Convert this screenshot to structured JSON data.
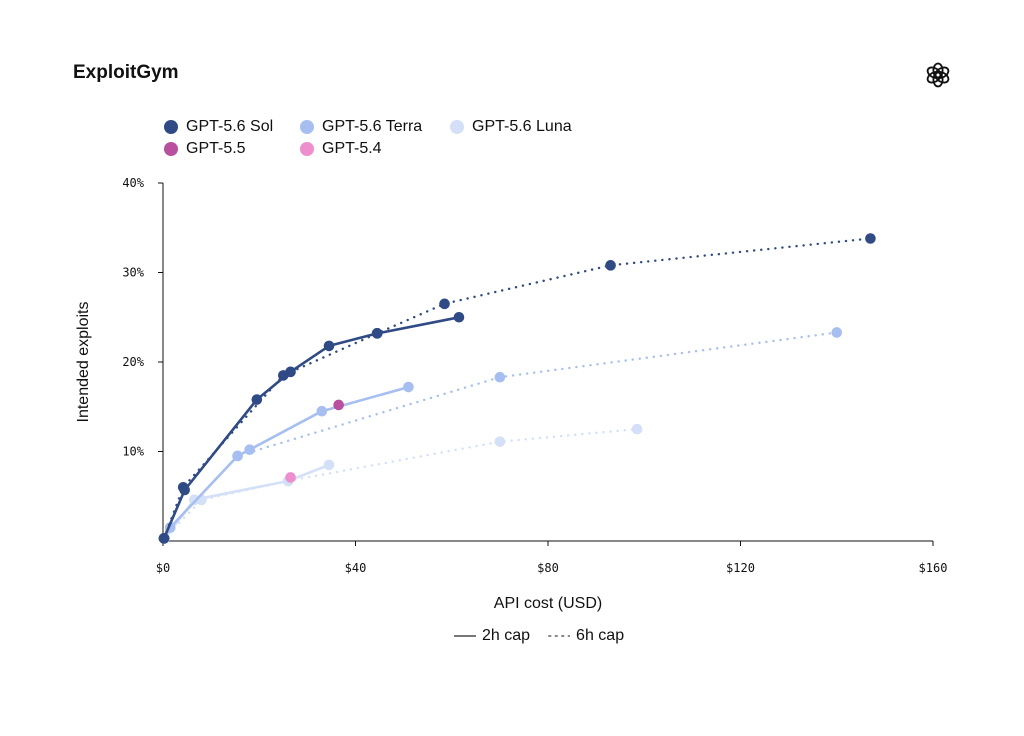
{
  "header": {
    "title": "ExploitGym",
    "logo_icon": "openai-logo-icon"
  },
  "legend": {
    "items": [
      {
        "label": "GPT-5.6 Sol",
        "color": "#2f4a85"
      },
      {
        "label": "GPT-5.6 Terra",
        "color": "#a6bff0"
      },
      {
        "label": "GPT-5.6 Luna",
        "color": "#d3e0f7"
      },
      {
        "label": "GPT-5.5",
        "color": "#b84f9f"
      },
      {
        "label": "GPT-5.4",
        "color": "#ee8fcd"
      }
    ]
  },
  "cap_legend": {
    "solid_label": "2h cap",
    "dotted_label": "6h cap"
  },
  "chart_data": {
    "type": "line",
    "title": "ExploitGym",
    "xlabel": "API cost (USD)",
    "ylabel": "Intended exploits",
    "xlim": [
      0,
      160
    ],
    "ylim": [
      0,
      40
    ],
    "x_ticks": [
      0,
      40,
      80,
      120,
      160
    ],
    "x_tick_labels": [
      "$0",
      "$40",
      "$80",
      "$120",
      "$160"
    ],
    "y_ticks": [
      10,
      20,
      30,
      40
    ],
    "y_tick_labels": [
      "10%",
      "20%",
      "30%",
      "40%"
    ],
    "grid": false,
    "legend_position": "top-left",
    "series": [
      {
        "name": "GPT-5.6 Sol",
        "cap": "6h cap",
        "style": "dotted",
        "color": "#2f4a85",
        "points": [
          [
            0.2,
            0.3
          ],
          [
            4.2,
            6.0
          ],
          [
            25,
            18.5
          ],
          [
            44.5,
            23.2
          ],
          [
            58.5,
            26.5
          ],
          [
            93,
            30.8
          ],
          [
            147,
            33.8
          ]
        ]
      },
      {
        "name": "GPT-5.6 Sol",
        "cap": "2h cap",
        "style": "solid",
        "color": "#2f4a85",
        "points": [
          [
            0.2,
            0.3
          ],
          [
            4.5,
            5.7
          ],
          [
            19.5,
            15.8
          ],
          [
            26.5,
            18.9
          ],
          [
            34.5,
            21.8
          ],
          [
            44.5,
            23.2
          ],
          [
            61.5,
            25.0
          ]
        ]
      },
      {
        "name": "GPT-5.6 Terra",
        "cap": "6h cap",
        "style": "dotted",
        "color": "#a6bff0",
        "points": [
          [
            0.3,
            0.3
          ],
          [
            1.5,
            1.5
          ],
          [
            15.5,
            9.5
          ],
          [
            70,
            18.3
          ],
          [
            140,
            23.3
          ]
        ]
      },
      {
        "name": "GPT-5.6 Terra",
        "cap": "2h cap",
        "style": "solid",
        "color": "#a6bff0",
        "points": [
          [
            0.3,
            0.3
          ],
          [
            1.5,
            1.5
          ],
          [
            15.5,
            9.5
          ],
          [
            18,
            10.2
          ],
          [
            33,
            14.5
          ],
          [
            51,
            17.2
          ]
        ]
      },
      {
        "name": "GPT-5.6 Luna",
        "cap": "6h cap",
        "style": "dotted",
        "color": "#d3e0f7",
        "points": [
          [
            0.3,
            0.3
          ],
          [
            8,
            4.6
          ],
          [
            26,
            6.7
          ],
          [
            70,
            11.1
          ],
          [
            98.5,
            12.5
          ]
        ]
      },
      {
        "name": "GPT-5.6 Luna",
        "cap": "2h cap",
        "style": "solid",
        "color": "#d3e0f7",
        "points": [
          [
            0.3,
            0.3
          ],
          [
            6.5,
            4.6
          ],
          [
            26,
            6.7
          ],
          [
            34.5,
            8.5
          ]
        ]
      },
      {
        "name": "GPT-5.5",
        "style": "point",
        "color": "#b84f9f",
        "points": [
          [
            36.5,
            15.2
          ]
        ]
      },
      {
        "name": "GPT-5.4",
        "style": "point",
        "color": "#ee8fcd",
        "points": [
          [
            26.5,
            7.1
          ]
        ]
      }
    ]
  }
}
